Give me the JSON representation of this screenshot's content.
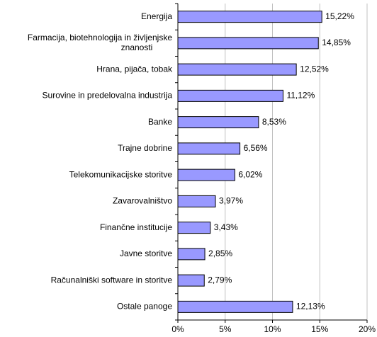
{
  "chart_data": {
    "type": "bar",
    "orientation": "horizontal",
    "categories": [
      "Energija",
      "Farmacija, biotehnologija in življenjske znanosti",
      "Hrana, pijača, tobak",
      "Surovine in predelovalna industrija",
      "Banke",
      "Trajne dobrine",
      "Telekomunikacijske storitve",
      "Zavarovalništvo",
      "Finančne institucije",
      "Javne storitve",
      "Računalniški software in storitve",
      "Ostale panoge"
    ],
    "values": [
      15.22,
      14.85,
      12.52,
      11.12,
      8.53,
      6.56,
      6.02,
      3.97,
      3.43,
      2.85,
      2.79,
      12.13
    ],
    "value_labels": [
      "15,22%",
      "14,85%",
      "12,52%",
      "11,12%",
      "8,53%",
      "6,56%",
      "6,02%",
      "3,97%",
      "3,43%",
      "2,85%",
      "2,79%",
      "12,13%"
    ],
    "color": "#9999ff",
    "xlim": [
      0,
      20
    ],
    "xticks": [
      {
        "value": 0,
        "label": "0%"
      },
      {
        "value": 5,
        "label": "5%"
      },
      {
        "value": 10,
        "label": "10%"
      },
      {
        "value": 15,
        "label": "15%"
      },
      {
        "value": 20,
        "label": "20%"
      }
    ],
    "grid": true
  }
}
